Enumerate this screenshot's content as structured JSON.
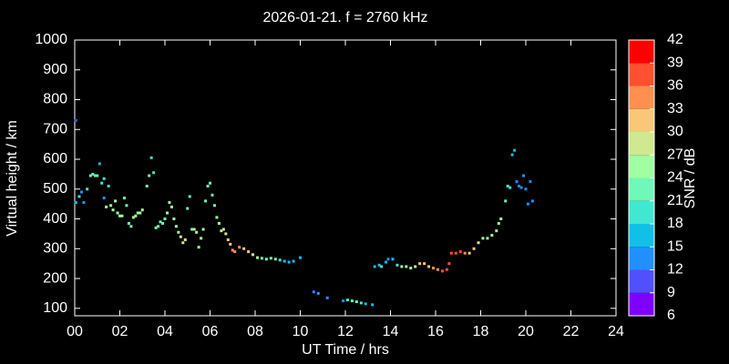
{
  "chart_data": {
    "type": "scatter",
    "title": "2026-01-21. f = 2760 kHz",
    "xlabel": "UT Time / hrs",
    "ylabel": "Virtual height / km",
    "xlim": [
      0,
      24
    ],
    "ylim": [
      75,
      1000
    ],
    "xticks": [
      {
        "value": 0,
        "label": "00"
      },
      {
        "value": 2,
        "label": "02"
      },
      {
        "value": 4,
        "label": "04"
      },
      {
        "value": 6,
        "label": "06"
      },
      {
        "value": 8,
        "label": "08"
      },
      10,
      12,
      14,
      16,
      18,
      20,
      22,
      24
    ],
    "yticks": [
      100,
      200,
      300,
      400,
      500,
      600,
      700,
      800,
      900,
      1000
    ],
    "x": [
      0.05,
      0.05,
      0.2,
      0.3,
      0.4,
      0.55,
      0.7,
      0.8,
      0.9,
      1.0,
      1.1,
      1.2,
      1.3,
      1.3,
      1.4,
      1.5,
      1.6,
      1.7,
      1.8,
      1.9,
      2.0,
      2.1,
      2.2,
      2.3,
      2.4,
      2.5,
      2.6,
      2.7,
      2.8,
      2.9,
      3.0,
      3.2,
      3.3,
      3.4,
      3.5,
      3.6,
      3.7,
      3.8,
      3.9,
      4.0,
      4.1,
      4.2,
      4.3,
      4.4,
      4.5,
      4.6,
      4.7,
      4.8,
      4.9,
      5.0,
      5.1,
      5.2,
      5.3,
      5.4,
      5.5,
      5.6,
      5.7,
      5.8,
      5.9,
      6.0,
      6.1,
      6.2,
      6.3,
      6.4,
      6.5,
      6.6,
      6.7,
      6.8,
      6.9,
      7.0,
      7.1,
      7.3,
      7.5,
      7.7,
      7.9,
      8.1,
      8.3,
      8.5,
      8.7,
      8.9,
      9.1,
      9.3,
      9.5,
      9.7,
      10.0,
      10.6,
      10.8,
      11.2,
      11.9,
      12.1,
      12.3,
      12.5,
      12.7,
      12.9,
      13.2,
      13.3,
      13.5,
      13.6,
      13.8,
      13.9,
      14.1,
      14.3,
      14.5,
      14.7,
      14.9,
      15.1,
      15.3,
      15.5,
      15.7,
      15.9,
      16.1,
      16.3,
      16.5,
      16.6,
      16.7,
      16.9,
      17.1,
      17.3,
      17.5,
      17.7,
      17.9,
      18.1,
      18.3,
      18.5,
      18.7,
      18.8,
      18.9,
      19.1,
      19.2,
      19.3,
      19.4,
      19.5,
      19.6,
      19.7,
      19.8,
      19.9,
      20.0,
      20.1,
      20.2,
      20.3
    ],
    "y": [
      730,
      455,
      475,
      490,
      455,
      500,
      545,
      550,
      545,
      545,
      585,
      520,
      535,
      470,
      440,
      510,
      445,
      430,
      460,
      420,
      410,
      410,
      470,
      445,
      385,
      375,
      405,
      410,
      420,
      420,
      430,
      510,
      545,
      605,
      555,
      370,
      375,
      390,
      385,
      400,
      420,
      455,
      440,
      400,
      375,
      355,
      340,
      320,
      330,
      435,
      475,
      365,
      365,
      355,
      305,
      335,
      365,
      460,
      510,
      520,
      480,
      445,
      405,
      385,
      360,
      365,
      350,
      330,
      315,
      295,
      290,
      305,
      300,
      290,
      280,
      270,
      268,
      265,
      268,
      265,
      262,
      258,
      255,
      258,
      270,
      155,
      150,
      135,
      125,
      128,
      125,
      122,
      118,
      115,
      112,
      240,
      245,
      240,
      255,
      265,
      265,
      245,
      240,
      240,
      235,
      240,
      250,
      250,
      240,
      235,
      230,
      225,
      230,
      250,
      285,
      285,
      290,
      285,
      285,
      300,
      320,
      335,
      335,
      345,
      360,
      385,
      400,
      460,
      510,
      505,
      615,
      630,
      525,
      510,
      505,
      545,
      500,
      450,
      525,
      460
    ],
    "snr": [
      9,
      15,
      18,
      12,
      12,
      18,
      21,
      21,
      21,
      21,
      15,
      18,
      18,
      12,
      24,
      18,
      24,
      24,
      24,
      24,
      24,
      24,
      21,
      21,
      21,
      21,
      24,
      24,
      24,
      24,
      24,
      21,
      21,
      18,
      18,
      21,
      21,
      21,
      21,
      21,
      24,
      24,
      24,
      24,
      24,
      24,
      27,
      27,
      27,
      21,
      21,
      24,
      24,
      24,
      24,
      24,
      24,
      21,
      21,
      21,
      21,
      21,
      24,
      24,
      27,
      27,
      27,
      30,
      30,
      33,
      33,
      33,
      30,
      30,
      27,
      24,
      21,
      21,
      21,
      21,
      18,
      15,
      15,
      15,
      15,
      12,
      12,
      12,
      12,
      18,
      21,
      21,
      18,
      15,
      15,
      15,
      15,
      18,
      15,
      12,
      15,
      18,
      24,
      24,
      24,
      27,
      30,
      30,
      30,
      33,
      33,
      36,
      36,
      36,
      36,
      36,
      36,
      33,
      30,
      30,
      27,
      24,
      24,
      24,
      24,
      24,
      24,
      21,
      18,
      18,
      15,
      15,
      12,
      12,
      12,
      12,
      12,
      12,
      12,
      12
    ],
    "colorbar": {
      "label": "SNR / dB",
      "ticks": [
        6,
        9,
        12,
        15,
        18,
        21,
        24,
        27,
        30,
        33,
        36,
        39,
        42
      ],
      "colors": [
        "#8000ff",
        "#5050ff",
        "#2090ff",
        "#10c0e8",
        "#40e8d0",
        "#70f8b8",
        "#a0ffa0",
        "#d0e890",
        "#f8c878",
        "#ff9050",
        "#ff5030",
        "#ff0000"
      ]
    }
  }
}
